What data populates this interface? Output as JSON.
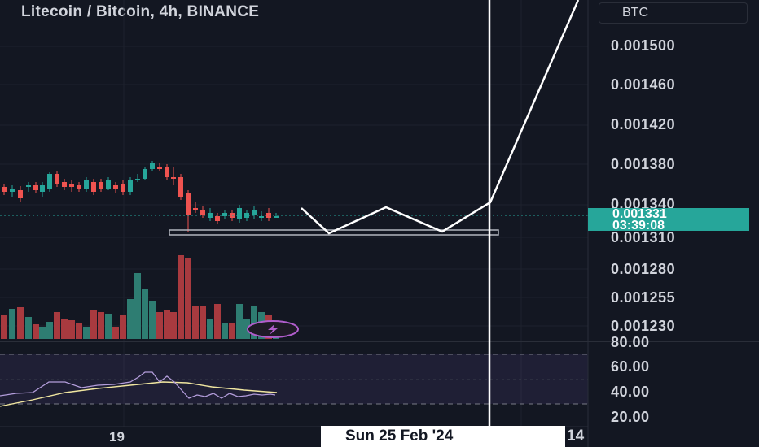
{
  "header": {
    "title": "Litecoin / Bitcoin, 4h, BINANCE",
    "currency": "BTC"
  },
  "price_axis": {
    "labels": [
      "0.001500",
      "0.001460",
      "0.001420",
      "0.001380",
      "0.001340",
      "0.001310",
      "0.001280",
      "0.001255",
      "0.001230"
    ]
  },
  "rsi_axis": {
    "labels": [
      "80.00",
      "60.00",
      "40.00",
      "20.00"
    ]
  },
  "current_price": {
    "value": "0.001331",
    "countdown": "03:39:08"
  },
  "time_axis": {
    "label": "19",
    "crosshair_date": "Sun 25 Feb '24",
    "next_label": "14"
  },
  "colors": {
    "background": "#131722",
    "up": "#26a69a",
    "down": "#ef5350",
    "volume_up": "#2e7d72",
    "volume_down": "#a83a3f",
    "rsi_line": "#b39ddb",
    "rsi_ma": "#f0e6a0"
  },
  "icons": [
    "lightning-icon"
  ]
}
